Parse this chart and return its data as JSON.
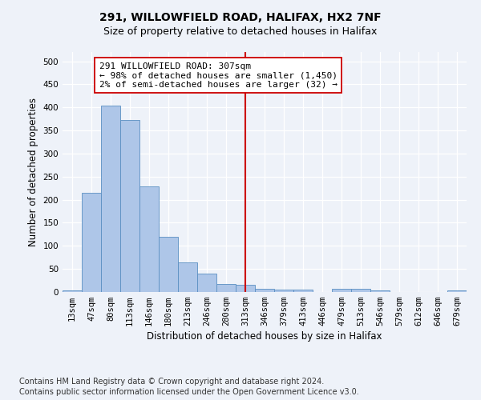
{
  "title1": "291, WILLOWFIELD ROAD, HALIFAX, HX2 7NF",
  "title2": "Size of property relative to detached houses in Halifax",
  "xlabel": "Distribution of detached houses by size in Halifax",
  "ylabel": "Number of detached properties",
  "categories": [
    "13sqm",
    "47sqm",
    "80sqm",
    "113sqm",
    "146sqm",
    "180sqm",
    "213sqm",
    "246sqm",
    "280sqm",
    "313sqm",
    "346sqm",
    "379sqm",
    "413sqm",
    "446sqm",
    "479sqm",
    "513sqm",
    "546sqm",
    "579sqm",
    "612sqm",
    "646sqm",
    "679sqm"
  ],
  "values": [
    4,
    215,
    403,
    373,
    228,
    120,
    65,
    40,
    18,
    15,
    7,
    5,
    6,
    0,
    7,
    7,
    3,
    0,
    0,
    0,
    3
  ],
  "bar_color": "#aec6e8",
  "bar_edge_color": "#5a8fc2",
  "vline_x_idx": 9,
  "vline_color": "#cc0000",
  "annotation_text": "291 WILLOWFIELD ROAD: 307sqm\n← 98% of detached houses are smaller (1,450)\n2% of semi-detached houses are larger (32) →",
  "annotation_box_color": "#ffffff",
  "annotation_box_edge": "#cc0000",
  "ylim": [
    0,
    520
  ],
  "yticks": [
    0,
    50,
    100,
    150,
    200,
    250,
    300,
    350,
    400,
    450,
    500
  ],
  "background_color": "#eef2f9",
  "grid_color": "#ffffff",
  "footnote1": "Contains HM Land Registry data © Crown copyright and database right 2024.",
  "footnote2": "Contains public sector information licensed under the Open Government Licence v3.0.",
  "title_fontsize": 10,
  "subtitle_fontsize": 9,
  "label_fontsize": 8.5,
  "tick_fontsize": 7.5,
  "footnote_fontsize": 7
}
